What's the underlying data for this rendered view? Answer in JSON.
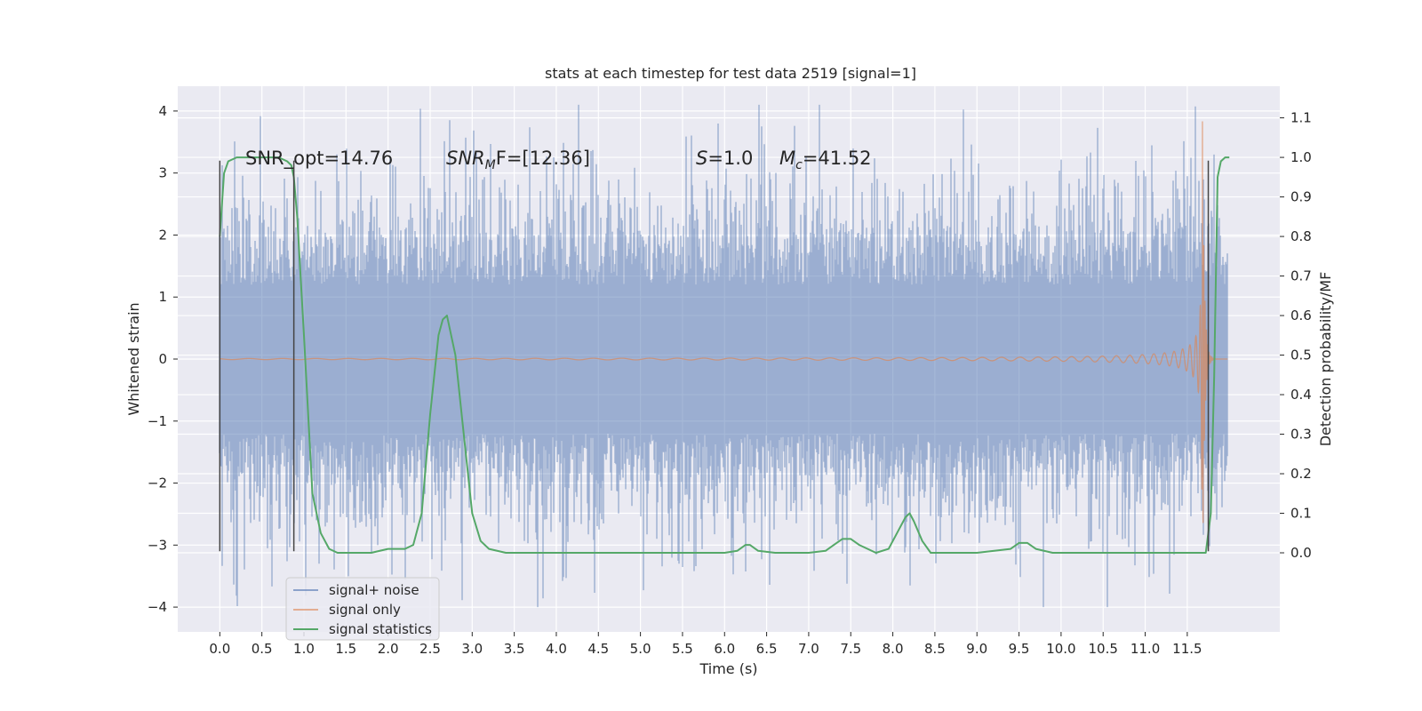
{
  "chart_data": {
    "type": "line",
    "title": "stats at each timestep for test data 2519 [signal=1]",
    "xlabel": "Time (s)",
    "ylabel": "Whitened strain",
    "y2label": "Detection probability/MF",
    "xlim": [
      -0.5,
      12.6
    ],
    "ylim": [
      -4.4,
      4.4
    ],
    "y2lim": [
      -0.2,
      1.18
    ],
    "xticks": [
      0.0,
      0.5,
      1.0,
      1.5,
      2.0,
      2.5,
      3.0,
      3.5,
      4.0,
      4.5,
      5.0,
      5.5,
      6.0,
      6.5,
      7.0,
      7.5,
      8.0,
      8.5,
      9.0,
      9.5,
      10.0,
      10.5,
      11.0,
      11.5
    ],
    "xtick_labels": [
      "0.0",
      "0.5",
      "1.0",
      "1.5",
      "2.0",
      "2.5",
      "3.0",
      "3.5",
      "4.0",
      "4.5",
      "5.0",
      "5.5",
      "6.0",
      "6.5",
      "7.0",
      "7.5",
      "8.0",
      "8.5",
      "9.0",
      "9.5",
      "10.0",
      "10.5",
      "11.0",
      "11.5"
    ],
    "yticks": [
      4,
      3,
      2,
      1,
      0,
      -1,
      -2,
      -3,
      -4
    ],
    "ytick_labels": [
      "4",
      "3",
      "2",
      "1",
      "0",
      "−1",
      "−2",
      "−3",
      "−4"
    ],
    "y2ticks": [
      1.1,
      1.0,
      0.9,
      0.8,
      0.7,
      0.6,
      0.5,
      0.4,
      0.3,
      0.2,
      0.1,
      0.0
    ],
    "y2tick_labels": [
      "1.1",
      "1.0",
      "0.9",
      "0.8",
      "0.7",
      "0.6",
      "0.5",
      "0.4",
      "0.3",
      "0.2",
      "0.1",
      "0.0"
    ],
    "grid": true,
    "legend": {
      "placement": "lower-left",
      "entries": [
        {
          "label": "signal+ noise",
          "color": "#4c72b0"
        },
        {
          "label": "signal only",
          "color": "#dd8452"
        },
        {
          "label": "signal statistics",
          "color": "#55a868"
        }
      ]
    },
    "annotations": [
      {
        "id": "snr-opt",
        "text": "SNR_opt=14.76"
      },
      {
        "id": "snr-mf",
        "text": "SNR",
        "sub": "M",
        "rest": "F=[12.36]",
        "italic": true
      },
      {
        "id": "s-value",
        "text": "S",
        "rest": "=1.0",
        "italic": true
      },
      {
        "id": "mc-value",
        "text": "M",
        "sub": "c",
        "rest": "=41.52",
        "italic": true
      }
    ],
    "noise": {
      "name": "signal+ noise",
      "color": "#4c72b0",
      "t_start": 0.0,
      "t_end": 11.98,
      "typical_range": [
        -1.8,
        2.0
      ],
      "max": 4.1,
      "min": -4.0
    },
    "signal": {
      "name": "signal only",
      "color": "#dd8452",
      "t_start": 0.0,
      "t_end": 11.98,
      "merger_time": 11.68,
      "peak_amplitude": 4.0
    },
    "signal_stats": {
      "name": "signal statistics",
      "color": "#55a868",
      "t": [
        0.0,
        0.05,
        0.1,
        0.2,
        0.3,
        0.5,
        0.7,
        0.8,
        0.85,
        0.88,
        0.92,
        1.0,
        1.1,
        1.2,
        1.3,
        1.4,
        1.6,
        1.8,
        2.0,
        2.1,
        2.2,
        2.3,
        2.4,
        2.5,
        2.6,
        2.65,
        2.7,
        2.8,
        2.9,
        3.0,
        3.1,
        3.2,
        3.4,
        3.6,
        3.8,
        4.0,
        4.5,
        5.0,
        5.5,
        6.0,
        6.15,
        6.25,
        6.3,
        6.4,
        6.6,
        7.0,
        7.2,
        7.3,
        7.4,
        7.5,
        7.6,
        7.8,
        7.95,
        8.05,
        8.15,
        8.2,
        8.25,
        8.35,
        8.45,
        8.6,
        9.0,
        9.4,
        9.5,
        9.6,
        9.7,
        9.9,
        10.5,
        11.0,
        11.5,
        11.65,
        11.72,
        11.78,
        11.82,
        11.86,
        11.9,
        11.95,
        12.0
      ],
      "p": [
        0.8,
        0.96,
        0.99,
        1.0,
        1.0,
        1.0,
        1.0,
        0.99,
        0.98,
        0.95,
        0.85,
        0.55,
        0.15,
        0.05,
        0.01,
        0.0,
        0.0,
        0.0,
        0.01,
        0.01,
        0.01,
        0.02,
        0.1,
        0.35,
        0.55,
        0.59,
        0.6,
        0.5,
        0.3,
        0.1,
        0.03,
        0.01,
        0.0,
        0.0,
        0.0,
        0.0,
        0.0,
        0.0,
        0.0,
        0.0,
        0.005,
        0.02,
        0.02,
        0.005,
        0.0,
        0.0,
        0.005,
        0.02,
        0.035,
        0.035,
        0.02,
        0.0,
        0.01,
        0.05,
        0.09,
        0.1,
        0.08,
        0.03,
        0.0,
        0.0,
        0.0,
        0.01,
        0.025,
        0.025,
        0.01,
        0.0,
        0.0,
        0.0,
        0.0,
        0.0,
        0.0,
        0.1,
        0.45,
        0.95,
        0.99,
        1.0,
        1.0
      ]
    },
    "vertical_markers": [
      {
        "t": 0.0,
        "y_from": -3.1,
        "y_to": 3.2
      },
      {
        "t": 0.88,
        "y_from": -3.1,
        "y_to": 3.2
      },
      {
        "t": 11.75,
        "y_from": -3.1,
        "y_to": 3.2
      }
    ]
  }
}
